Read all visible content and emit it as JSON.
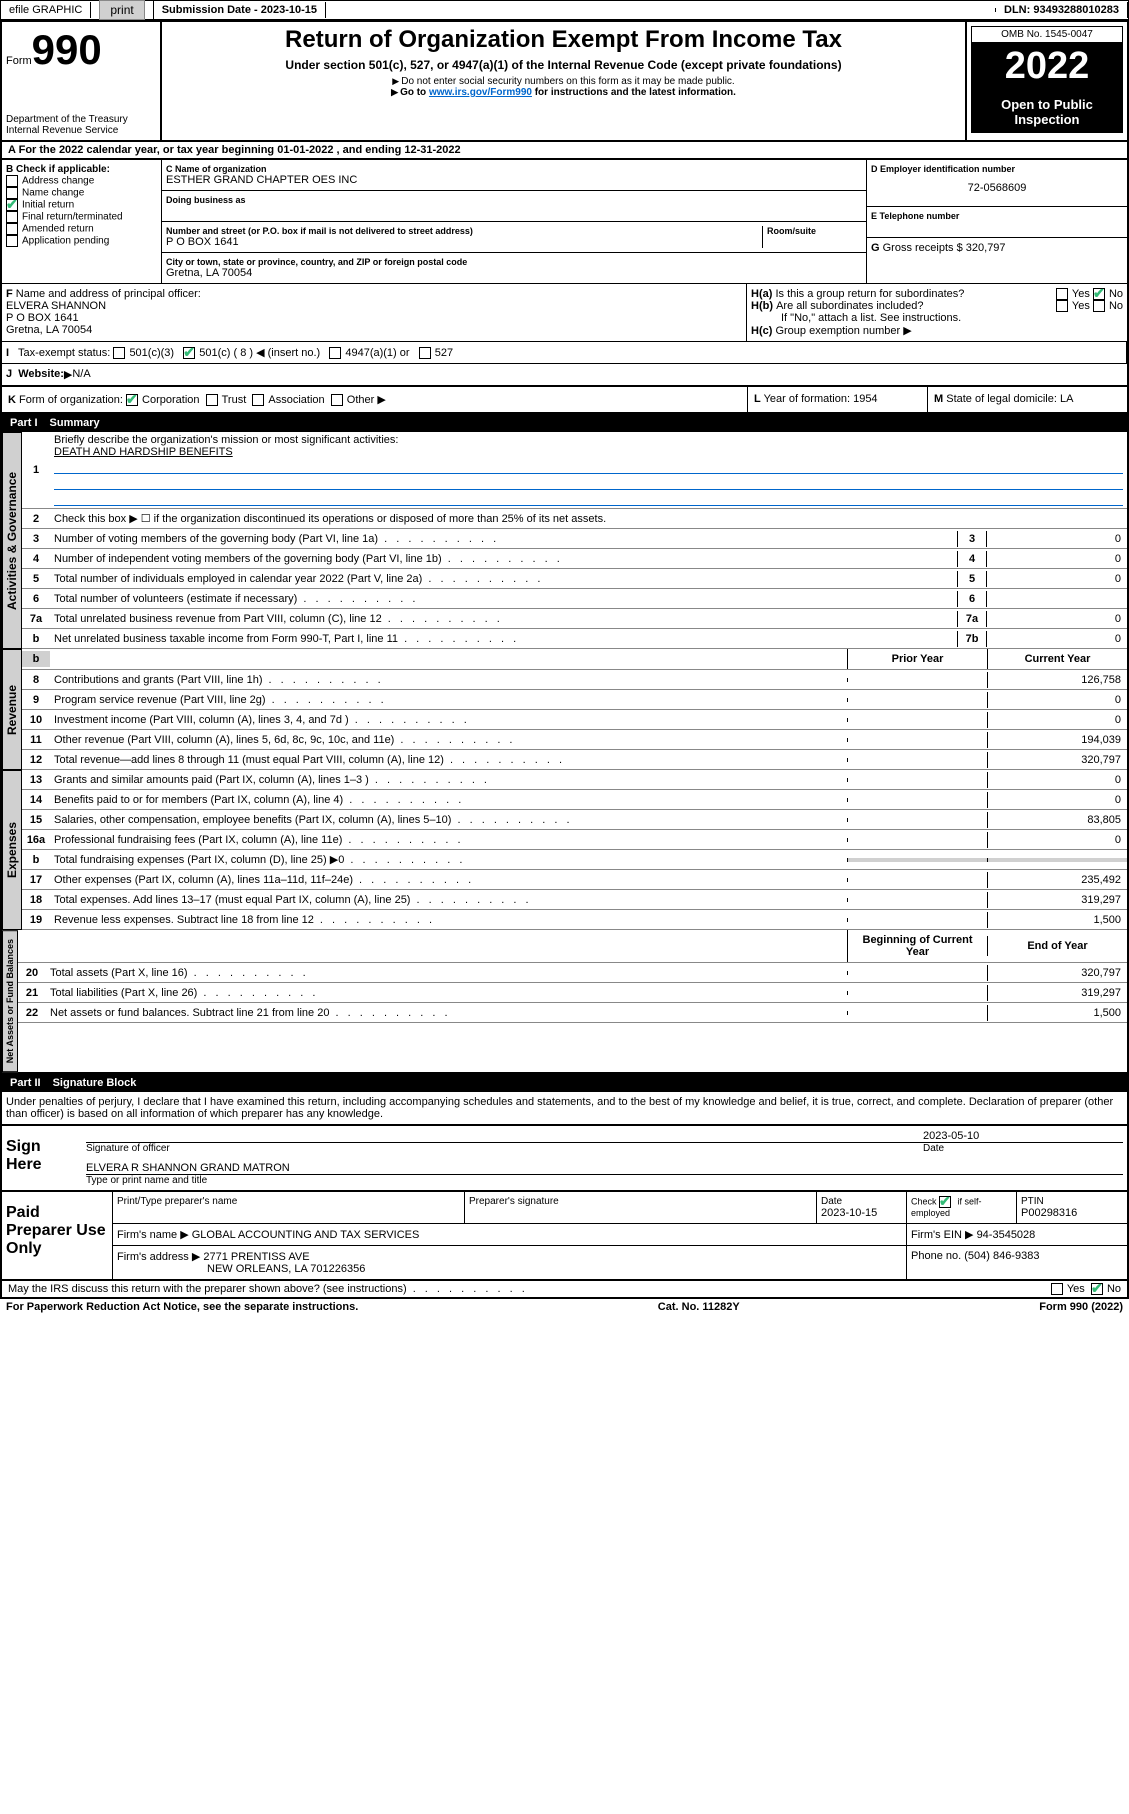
{
  "topbar": {
    "efile": "efile GRAPHIC",
    "print_btn": "print",
    "sub_label": "Submission Date -",
    "sub_date": "2023-10-15",
    "dln_label": "DLN:",
    "dln": "93493288010283"
  },
  "header": {
    "form_label": "Form",
    "form_num": "990",
    "dept": "Department of the Treasury",
    "irs": "Internal Revenue Service",
    "title": "Return of Organization Exempt From Income Tax",
    "subtitle": "Under section 501(c), 527, or 4947(a)(1) of the Internal Revenue Code (except private foundations)",
    "warn1": "Do not enter social security numbers on this form as it may be made public.",
    "warn2_pre": "Go to ",
    "warn2_link": "www.irs.gov/Form990",
    "warn2_post": " for instructions and the latest information.",
    "omb": "OMB No. 1545-0047",
    "year": "2022",
    "open": "Open to Public Inspection"
  },
  "sectionA": {
    "text": "For the 2022 calendar year, or tax year beginning 01-01-2022   , and ending 12-31-2022"
  },
  "B": {
    "header": "Check if applicable:",
    "items": [
      "Address change",
      "Name change",
      "Initial return",
      "Final return/terminated",
      "Amended return",
      "Application pending"
    ],
    "checked_idx": 2
  },
  "C": {
    "name_label": "Name of organization",
    "name": "ESTHER GRAND CHAPTER OES INC",
    "dba_label": "Doing business as",
    "street_label": "Number and street (or P.O. box if mail is not delivered to street address)",
    "room_label": "Room/suite",
    "street": "P O BOX 1641",
    "city_label": "City or town, state or province, country, and ZIP or foreign postal code",
    "city": "Gretna, LA   70054"
  },
  "D": {
    "label": "Employer identification number",
    "val": "72-0568609"
  },
  "E": {
    "label": "Telephone number",
    "val": ""
  },
  "G": {
    "label": "Gross receipts $",
    "val": "320,797"
  },
  "F": {
    "label": "Name and address of principal officer:",
    "name": "ELVERA SHANNON",
    "addr1": "P O BOX 1641",
    "addr2": "Gretna, LA   70054"
  },
  "H": {
    "a": "Is this a group return for subordinates?",
    "b": "Are all subordinates included?",
    "b_note": "If \"No,\" attach a list. See instructions.",
    "c": "Group exemption number",
    "yes": "Yes",
    "no": "No",
    "ha_no": true
  },
  "I": {
    "label": "Tax-exempt status:",
    "opts": [
      "501(c)(3)",
      "501(c) ( 8 ) ◀ (insert no.)",
      "4947(a)(1) or",
      "527"
    ],
    "checked_idx": 1
  },
  "J": {
    "label": "Website:",
    "val": "N/A"
  },
  "K": {
    "label": "Form of organization:",
    "opts": [
      "Corporation",
      "Trust",
      "Association",
      "Other"
    ],
    "checked_idx": 0
  },
  "L": {
    "label": "Year of formation:",
    "val": "1954"
  },
  "M": {
    "label": "State of legal domicile:",
    "val": "LA"
  },
  "part1": {
    "title": "Part I",
    "subtitle": "Summary",
    "l1": "Briefly describe the organization's mission or most significant activities:",
    "l1_val": "DEATH AND HARDSHIP BENEFITS",
    "l2": "Check this box ▶ ☐ if the organization discontinued its operations or disposed of more than 25% of its net assets.",
    "gov_tab": "Activities & Governance",
    "rev_tab": "Revenue",
    "exp_tab": "Expenses",
    "net_tab": "Net Assets or Fund Balances",
    "prior": "Prior Year",
    "current": "Current Year",
    "begin": "Beginning of Current Year",
    "end": "End of Year",
    "lines_gov": [
      {
        "n": "3",
        "t": "Number of voting members of the governing body (Part VI, line 1a)",
        "box": "3",
        "v": "0"
      },
      {
        "n": "4",
        "t": "Number of independent voting members of the governing body (Part VI, line 1b)",
        "box": "4",
        "v": "0"
      },
      {
        "n": "5",
        "t": "Total number of individuals employed in calendar year 2022 (Part V, line 2a)",
        "box": "5",
        "v": "0"
      },
      {
        "n": "6",
        "t": "Total number of volunteers (estimate if necessary)",
        "box": "6",
        "v": ""
      },
      {
        "n": "7a",
        "t": "Total unrelated business revenue from Part VIII, column (C), line 12",
        "box": "7a",
        "v": "0"
      },
      {
        "n": "b",
        "t": "Net unrelated business taxable income from Form 990-T, Part I, line 11",
        "box": "7b",
        "v": "0"
      }
    ],
    "lines_rev": [
      {
        "n": "8",
        "t": "Contributions and grants (Part VIII, line 1h)",
        "p": "",
        "c": "126,758"
      },
      {
        "n": "9",
        "t": "Program service revenue (Part VIII, line 2g)",
        "p": "",
        "c": "0"
      },
      {
        "n": "10",
        "t": "Investment income (Part VIII, column (A), lines 3, 4, and 7d )",
        "p": "",
        "c": "0"
      },
      {
        "n": "11",
        "t": "Other revenue (Part VIII, column (A), lines 5, 6d, 8c, 9c, 10c, and 11e)",
        "p": "",
        "c": "194,039"
      },
      {
        "n": "12",
        "t": "Total revenue—add lines 8 through 11 (must equal Part VIII, column (A), line 12)",
        "p": "",
        "c": "320,797"
      }
    ],
    "lines_exp": [
      {
        "n": "13",
        "t": "Grants and similar amounts paid (Part IX, column (A), lines 1–3 )",
        "p": "",
        "c": "0"
      },
      {
        "n": "14",
        "t": "Benefits paid to or for members (Part IX, column (A), line 4)",
        "p": "",
        "c": "0"
      },
      {
        "n": "15",
        "t": "Salaries, other compensation, employee benefits (Part IX, column (A), lines 5–10)",
        "p": "",
        "c": "83,805"
      },
      {
        "n": "16a",
        "t": "Professional fundraising fees (Part IX, column (A), line 11e)",
        "p": "",
        "c": "0"
      },
      {
        "n": "b",
        "t": "Total fundraising expenses (Part IX, column (D), line 25) ▶0",
        "p": null,
        "c": null
      },
      {
        "n": "17",
        "t": "Other expenses (Part IX, column (A), lines 11a–11d, 11f–24e)",
        "p": "",
        "c": "235,492"
      },
      {
        "n": "18",
        "t": "Total expenses. Add lines 13–17 (must equal Part IX, column (A), line 25)",
        "p": "",
        "c": "319,297"
      },
      {
        "n": "19",
        "t": "Revenue less expenses. Subtract line 18 from line 12",
        "p": "",
        "c": "1,500"
      }
    ],
    "lines_net": [
      {
        "n": "20",
        "t": "Total assets (Part X, line 16)",
        "p": "",
        "c": "320,797"
      },
      {
        "n": "21",
        "t": "Total liabilities (Part X, line 26)",
        "p": "",
        "c": "319,297"
      },
      {
        "n": "22",
        "t": "Net assets or fund balances. Subtract line 21 from line 20",
        "p": "",
        "c": "1,500"
      }
    ]
  },
  "part2": {
    "title": "Part II",
    "subtitle": "Signature Block",
    "decl": "Under penalties of perjury, I declare that I have examined this return, including accompanying schedules and statements, and to the best of my knowledge and belief, it is true, correct, and complete. Declaration of preparer (other than officer) is based on all information of which preparer has any knowledge.",
    "sign_here": "Sign Here",
    "sig_officer": "Signature of officer",
    "sig_date_label": "Date",
    "sig_date": "2023-05-10",
    "officer_name": "ELVERA R SHANNON  GRAND MATRON",
    "type_name": "Type or print name and title",
    "paid": "Paid Preparer Use Only",
    "prep_name_label": "Print/Type preparer's name",
    "prep_sig_label": "Preparer's signature",
    "prep_date_label": "Date",
    "prep_date": "2023-10-15",
    "check_self": "Check ☑ if self-employed",
    "ptin_label": "PTIN",
    "ptin": "P00298316",
    "firm_name_label": "Firm's name   ▶",
    "firm_name": "GLOBAL ACCOUNTING AND TAX SERVICES",
    "firm_ein_label": "Firm's EIN ▶",
    "firm_ein": "94-3545028",
    "firm_addr_label": "Firm's address ▶",
    "firm_addr1": "2771 PRENTISS AVE",
    "firm_addr2": "NEW ORLEANS, LA  701226356",
    "phone_label": "Phone no.",
    "phone": "(504) 846-9383",
    "discuss": "May the IRS discuss this return with the preparer shown above? (see instructions)",
    "discuss_no": true
  },
  "footer": {
    "l": "For Paperwork Reduction Act Notice, see the separate instructions.",
    "m": "Cat. No. 11282Y",
    "r": "Form 990 (2022)"
  }
}
